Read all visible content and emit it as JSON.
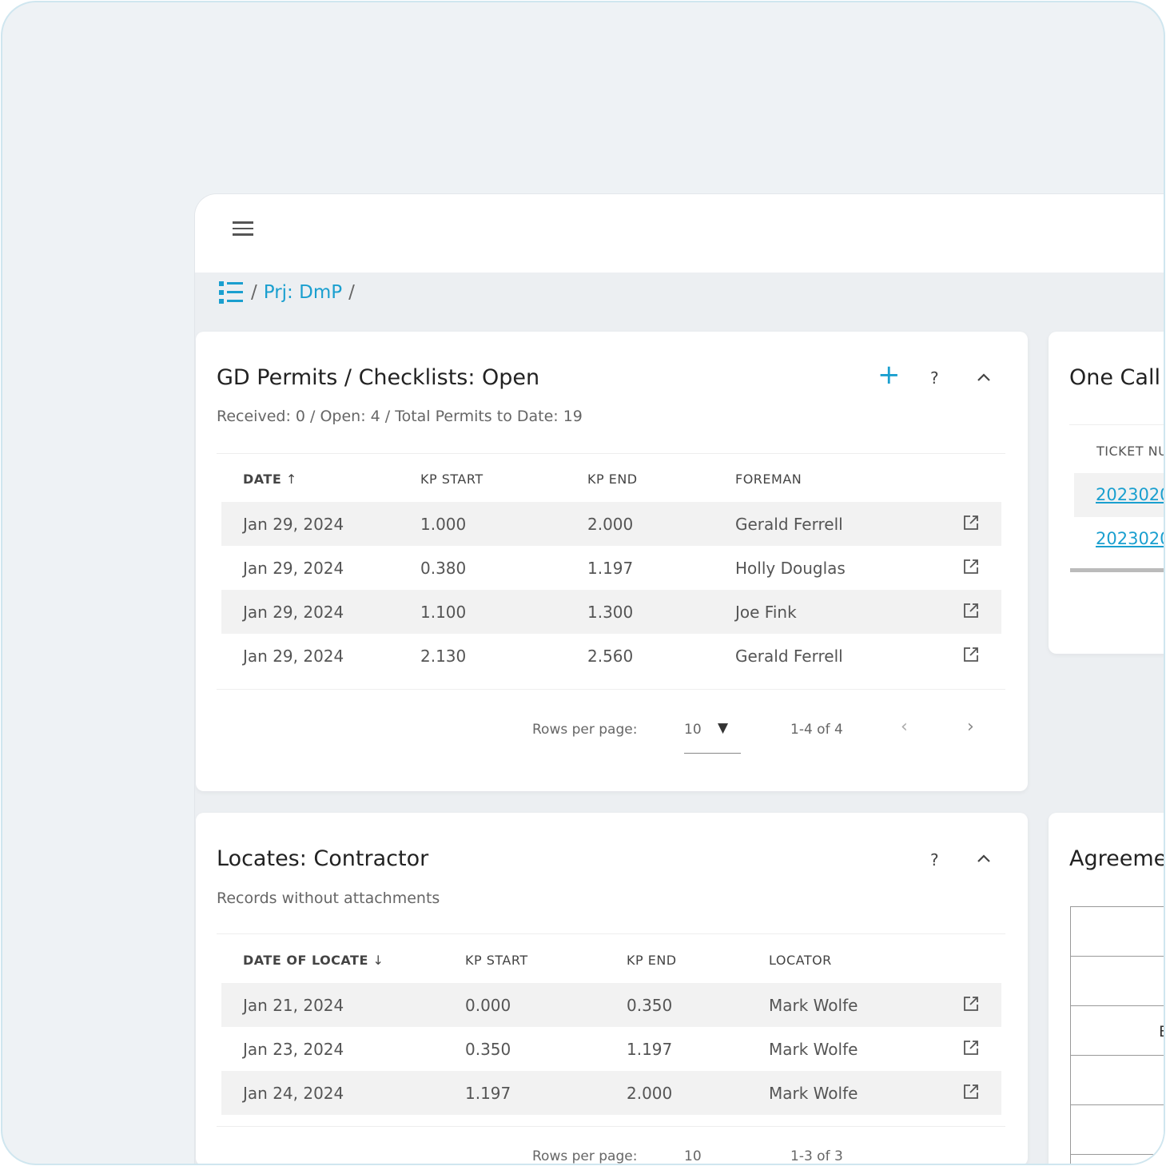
{
  "breadcrumb": {
    "separator": "/",
    "project": "Prj: DmP"
  },
  "permits": {
    "title": "GD Permits / Checklists: Open",
    "subtitle": "Received: 0 / Open: 4 / Total Permits to Date: 19",
    "columns": [
      "DATE",
      "KP START",
      "KP END",
      "FOREMAN"
    ],
    "sort": "ascending",
    "rows": [
      [
        "Jan 29, 2024",
        "1.000",
        "2.000",
        "Gerald Ferrell"
      ],
      [
        "Jan 29, 2024",
        "0.380",
        "1.197",
        "Holly Douglas"
      ],
      [
        "Jan 29, 2024",
        "1.100",
        "1.300",
        "Joe Fink"
      ],
      [
        "Jan 29, 2024",
        "2.130",
        "2.560",
        "Gerald Ferrell"
      ]
    ],
    "rows_per_page_label": "Rows per page:",
    "rows_per_page": "10",
    "range": "1-4 of 4",
    "add": "+",
    "help": "?"
  },
  "locates": {
    "title": "Locates: Contractor",
    "subtitle": "Records without attachments",
    "columns": [
      "DATE OF LOCATE",
      "KP START",
      "KP END",
      "LOCATOR"
    ],
    "sort": "descending",
    "rows": [
      [
        "Jan 21, 2024",
        "0.000",
        "0.350",
        "Mark Wolfe"
      ],
      [
        "Jan 23, 2024",
        "0.350",
        "1.197",
        "Mark Wolfe"
      ],
      [
        "Jan 24, 2024",
        "1.197",
        "2.000",
        "Mark Wolfe"
      ]
    ],
    "rows_per_page_label": "Rows per page:",
    "rows_per_page": "10",
    "range": "1-3 of 3",
    "help": "?"
  },
  "onecall": {
    "title": "One Call",
    "column": "TICKET NU",
    "tickets": [
      "2023020",
      "2023020"
    ]
  },
  "agreements": {
    "title": "Agreeme",
    "cell": "E"
  },
  "colors": {
    "accent": "#1a9fcf"
  }
}
